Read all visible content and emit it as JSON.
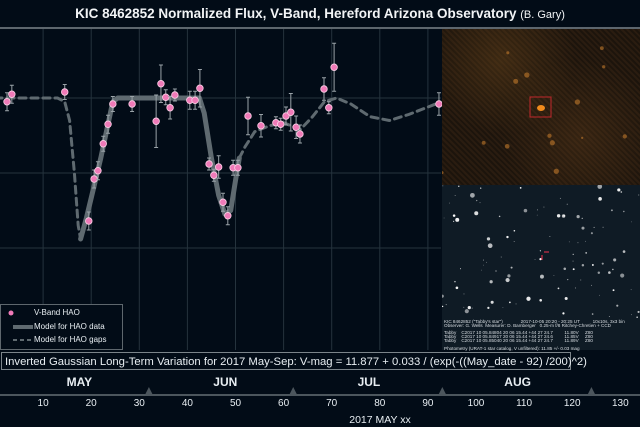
{
  "title": {
    "main": "KIC 8462852 Normalized Flux, V-Band, Hereford Arizona Observatory",
    "credit": "(B. Gary)"
  },
  "chart_data": {
    "type": "scatter",
    "title": "KIC 8462852 Normalized Flux, V-Band, Hereford Arizona Observatory (B. Gary)",
    "xlabel": "2017 MAY xx",
    "xlim": [
      0,
      134
    ],
    "x_ticks": [
      10,
      20,
      30,
      40,
      50,
      60,
      70,
      80,
      90,
      100,
      110,
      120,
      130
    ],
    "ylim": [
      0.977,
      1.0067
    ],
    "y_gridlines": [
      1.0,
      0.99,
      0.98
    ],
    "grid": true,
    "legend_position": "bottom-left",
    "series": [
      {
        "name": "V-Band HAO",
        "color": "#f07ab8",
        "x": [
          2.5,
          3.5,
          14.5,
          19.5,
          20.6,
          21.4,
          22.5,
          23.5,
          24.5,
          28.5,
          33.5,
          34.5,
          35.5,
          36.4,
          37.4,
          40.5,
          41.6,
          42.6,
          44.5,
          45.5,
          46.5,
          47.4,
          48.4,
          49.5,
          50.5,
          52.6,
          55.3,
          58.4,
          59.4,
          60.5,
          61.5,
          62.6,
          63.4,
          68.4,
          69.4,
          70.5,
          92.3
        ],
        "y": [
          0.9995,
          1.0005,
          1.0008,
          0.9836,
          0.9892,
          0.9903,
          0.9939,
          0.9965,
          0.9992,
          0.9992,
          0.9969,
          1.0019,
          1.0001,
          0.9987,
          1.0004,
          0.9997,
          0.9997,
          1.0013,
          0.9912,
          0.9897,
          0.9908,
          0.9861,
          0.9843,
          0.9907,
          0.9907,
          0.9976,
          0.9963,
          0.9967,
          0.9965,
          0.9976,
          0.9981,
          0.9961,
          0.9952,
          1.0012,
          0.9987,
          1.0041,
          0.9992
        ],
        "err": [
          0.0012,
          0.0012,
          0.001,
          0.0012,
          0.0012,
          0.0012,
          0.001,
          0.0012,
          0.001,
          0.001,
          0.0035,
          0.0025,
          0.001,
          0.0015,
          0.0008,
          0.0012,
          0.0012,
          0.0025,
          0.0008,
          0.0008,
          0.0015,
          0.0012,
          0.0012,
          0.001,
          0.001,
          0.0025,
          0.0015,
          0.0008,
          0.0008,
          0.0012,
          0.0025,
          0.0015,
          0.0012,
          0.0015,
          0.0008,
          0.0032,
          0.0015
        ]
      },
      {
        "name": "Model for HAO data",
        "style": "solid",
        "color": "#5f6a70",
        "segments": [
          {
            "x": [
              17.8,
              19,
              20.5,
              22,
              23.5,
              24.5,
              25.5,
              42.5,
              43.5,
              45,
              46.5,
              47.8,
              49,
              50,
              50.8
            ],
            "y": [
              0.9812,
              0.984,
              0.988,
              0.992,
              0.9965,
              0.9995,
              1.0,
              1.0,
              0.998,
              0.992,
              0.987,
              0.9845,
              0.985,
              0.989,
              0.992
            ]
          }
        ]
      },
      {
        "name": "Model for HAO gaps",
        "style": "dashed",
        "color": "#5f6a70",
        "segments": [
          {
            "x": [
              0,
              13,
              14.5,
              15.5,
              16.5,
              17.3,
              17.8
            ],
            "y": [
              1.0,
              1.0,
              0.9995,
              0.997,
              0.99,
              0.983,
              0.9812
            ]
          },
          {
            "x": [
              50.8,
              52,
              54,
              57,
              60,
              63.5,
              66,
              68.5,
              71,
              74,
              78,
              82,
              86,
              92
            ],
            "y": [
              0.992,
              0.9935,
              0.9955,
              0.9963,
              0.9967,
              0.9958,
              0.9975,
              0.9995,
              1.0,
              0.9992,
              0.9975,
              0.997,
              0.9978,
              0.9993
            ]
          }
        ]
      }
    ],
    "months": [
      {
        "label": "MAY",
        "center": 18
      },
      {
        "label": "JUN",
        "center": 48.5
      },
      {
        "label": "JUL",
        "center": 78.5
      },
      {
        "label": "AUG",
        "center": 109
      }
    ],
    "month_markers": [
      32,
      62,
      93,
      124
    ],
    "annotation": "Inverted Gaussian Long-Term Variation for 2017 May-Sep:  V-mag = 11.877 + 0.033 / (exp(-((May_date - 92) /200)^2)"
  },
  "legend": {
    "items": [
      "V-Band HAO",
      "Model for HAO data",
      "Model for HAO gaps"
    ]
  },
  "inset": {
    "caption_lines": [
      "KIC 8462852 (\"Tabby's star\")              2017-10-05 20:20 - 20:25 UT          10x10s, 3x3 bin",
      "Observer: G. Wells  Measurer: D. Bamberger   0.25-m f/8 Ritchey-Chretien + CCD",
      "",
      "Tabby    C2017 10 05.84804 20 06 15.44 +44 27 24.7         11.80V     Z80",
      "Tabby    C2017 10 05.84917 20 06 15.44 +44 27 24.6         11.85V     Z80",
      "Tabby    C2017 10 05.85040 20 06 15.44 +44 27 24.7         11.89V     Z80",
      "",
      "Photometry (URAT-1 star catalog, V unfiltered): 11.85 +/- 0.03 mag"
    ]
  },
  "colors": {
    "background": "#020c17",
    "points": "#f07ab8",
    "model": "#5f6a70",
    "grid": "#25333d",
    "target_box": "#c0282c"
  }
}
